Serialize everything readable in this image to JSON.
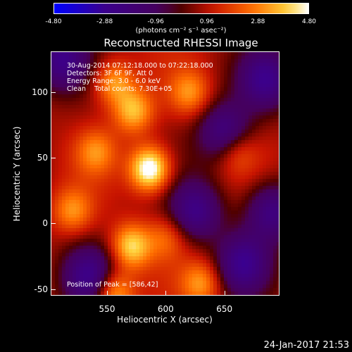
{
  "colorbar": {
    "tick_labels": [
      "-4.80",
      "-2.88",
      "-0.96",
      "0.96",
      "2.88",
      "4.80"
    ],
    "unit": "(photons cm⁻² s⁻¹ asec⁻²)",
    "range": [
      -4.8,
      4.8
    ]
  },
  "title": "Reconstructed RHESSI Image",
  "annotations": {
    "time": "30-Aug-2014 07:12:18.000 to 07:22:18.000",
    "detectors": "Detectors: 3F 6F 9F, Att 0",
    "energy": "Energy Range: 3.0 - 6.0 keV",
    "clean": "Clean    Total counts: 7.30E+05",
    "peak": "Position of Peak = [586,42]"
  },
  "footer": {
    "date": "24-Jan-2017 21:53"
  },
  "chart_data": {
    "type": "heatmap",
    "title": "Reconstructed RHESSI Image",
    "xlabel": "Heliocentric X (arcsec)",
    "ylabel": "Heliocentric Y (arcsec)",
    "xlim": [
      502,
      697
    ],
    "ylim": [
      -55,
      131
    ],
    "xticks": [
      550,
      600,
      650
    ],
    "yticks": [
      -50,
      0,
      50,
      100
    ],
    "colorbar_range": [
      -4.8,
      4.8
    ],
    "colormap": "rhessi-thermal",
    "sources": [
      {
        "x": 586,
        "y": 42,
        "value": 4.8
      },
      {
        "x": 570,
        "y": -17,
        "value": 3.4
      },
      {
        "x": 572,
        "y": 86,
        "value": 2.9
      },
      {
        "x": 555,
        "y": 108,
        "value": 2.6
      },
      {
        "x": 555,
        "y": -52,
        "value": 3.2
      },
      {
        "x": 620,
        "y": 100,
        "value": 2.2
      },
      {
        "x": 520,
        "y": 10,
        "value": 2.2
      },
      {
        "x": 630,
        "y": -45,
        "value": 2.3
      },
      {
        "x": 600,
        "y": -10,
        "value": 1.6
      },
      {
        "x": 660,
        "y": 55,
        "value": 1.6
      },
      {
        "x": 540,
        "y": 55,
        "value": 2.0
      }
    ],
    "dark_regions": [
      {
        "x": 685,
        "y": 110
      },
      {
        "x": 690,
        "y": 10
      },
      {
        "x": 625,
        "y": 10
      },
      {
        "x": 650,
        "y": 70
      },
      {
        "x": 535,
        "y": -40
      },
      {
        "x": 510,
        "y": 125
      },
      {
        "x": 665,
        "y": -30
      }
    ]
  }
}
